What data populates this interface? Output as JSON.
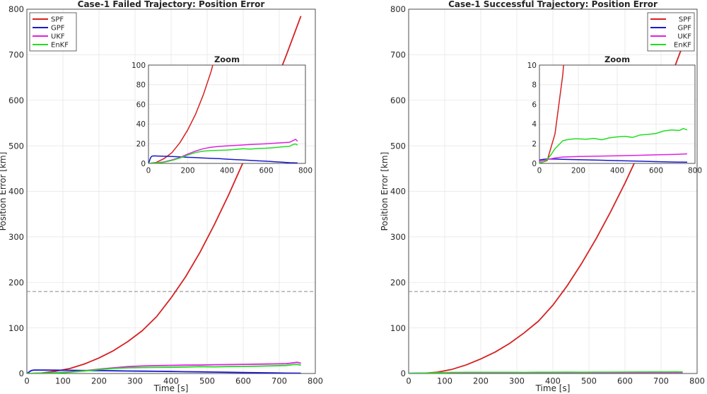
{
  "chart_data": [
    {
      "type": "line",
      "title": "Case-1 Failed Trajectory: Position Error",
      "xlabel": "Time [s]",
      "ylabel": "Position Error [km]",
      "xlim": [
        0,
        800
      ],
      "ylim": [
        0,
        800
      ],
      "xticks": [
        "0",
        "100",
        "200",
        "300",
        "400",
        "500",
        "600",
        "700",
        "800"
      ],
      "yticks": [
        "0",
        "100",
        "200",
        "300",
        "400",
        "500",
        "600",
        "700",
        "800"
      ],
      "grid": true,
      "legend_position": "top-left",
      "reference_line": {
        "y": 180,
        "style": "dashed",
        "color": "#888888"
      },
      "series": [
        {
          "name": "SPF",
          "color": "#d62020",
          "x": [
            0,
            40,
            80,
            120,
            160,
            200,
            240,
            280,
            320,
            360,
            400,
            440,
            480,
            520,
            560,
            600,
            640,
            680,
            720,
            760
          ],
          "y": [
            0,
            1,
            5,
            11,
            21,
            34,
            50,
            70,
            94,
            125,
            166,
            212,
            266,
            327,
            393,
            464,
            541,
            619,
            700,
            785
          ]
        },
        {
          "name": "GPF",
          "color": "#1a1acc",
          "x": [
            0,
            5,
            10,
            15,
            20,
            30,
            50,
            80,
            120,
            160,
            200,
            240,
            280,
            320,
            360,
            400,
            440,
            480,
            520,
            560,
            600,
            640,
            680,
            720,
            760
          ],
          "y": [
            0,
            2.5,
            5.5,
            7,
            7.5,
            7.6,
            7.5,
            7.3,
            7.0,
            6.6,
            6.2,
            5.9,
            5.5,
            5.1,
            4.8,
            4.3,
            3.9,
            3.5,
            3.1,
            2.6,
            2.2,
            1.7,
            1.2,
            0.7,
            0.4
          ]
        },
        {
          "name": "UKF",
          "color": "#e020e0",
          "x": [
            0,
            40,
            80,
            120,
            160,
            200,
            240,
            280,
            320,
            360,
            400,
            440,
            480,
            520,
            560,
            600,
            640,
            680,
            720,
            740,
            750,
            760
          ],
          "y": [
            0,
            0.5,
            1.5,
            3.5,
            6.0,
            9.5,
            12.5,
            15.0,
            16.5,
            17.3,
            17.8,
            18.3,
            18.7,
            19.2,
            19.6,
            20.0,
            20.5,
            21.0,
            21.5,
            23.5,
            24.5,
            22.5
          ]
        },
        {
          "name": "EnKF",
          "color": "#22dd22",
          "x": [
            0,
            40,
            80,
            120,
            160,
            200,
            240,
            280,
            320,
            360,
            400,
            440,
            480,
            520,
            560,
            600,
            640,
            680,
            720,
            740,
            750,
            760
          ],
          "y": [
            0,
            0.4,
            1.2,
            3.0,
            5.5,
            8.5,
            11.0,
            12.5,
            13.0,
            13.3,
            13.6,
            14.2,
            15.0,
            14.6,
            15.2,
            15.5,
            16.0,
            16.8,
            17.5,
            19.5,
            19.8,
            18.5
          ]
        }
      ],
      "inset": {
        "title": "Zoom",
        "xlim": [
          0,
          800
        ],
        "ylim": [
          0,
          100
        ],
        "xticks": [
          "0",
          "200",
          "400",
          "600",
          "800"
        ],
        "yticks": [
          "0",
          "20",
          "40",
          "60",
          "80",
          "100"
        ]
      }
    },
    {
      "type": "line",
      "title": "Case-1 Successful Trajectory: Position Error",
      "xlabel": "Time [s]",
      "ylabel": "Position Error [km]",
      "xlim": [
        0,
        800
      ],
      "ylim": [
        0,
        800
      ],
      "xticks": [
        "0",
        "100",
        "200",
        "300",
        "400",
        "500",
        "600",
        "700",
        "800"
      ],
      "yticks": [
        "0",
        "100",
        "200",
        "300",
        "400",
        "500",
        "600",
        "700",
        "800"
      ],
      "grid": true,
      "legend_position": "top-right",
      "reference_line": {
        "y": 180,
        "style": "dashed",
        "color": "#888888"
      },
      "series": [
        {
          "name": "SPF",
          "color": "#d62020",
          "x": [
            0,
            40,
            80,
            120,
            160,
            200,
            240,
            280,
            320,
            360,
            400,
            440,
            480,
            520,
            560,
            600,
            640,
            680,
            720,
            760
          ],
          "y": [
            0,
            0.3,
            3,
            9,
            19,
            32,
            47,
            66,
            89,
            115,
            150,
            193,
            242,
            296,
            355,
            418,
            486,
            558,
            636,
            720
          ]
        },
        {
          "name": "GPF",
          "color": "#1a1acc",
          "x": [
            0,
            20,
            40,
            80,
            120,
            200,
            300,
            400,
            500,
            600,
            700,
            760
          ],
          "y": [
            0.35,
            0.42,
            0.45,
            0.44,
            0.42,
            0.38,
            0.33,
            0.28,
            0.23,
            0.18,
            0.14,
            0.12
          ]
        },
        {
          "name": "UKF",
          "color": "#e020e0",
          "x": [
            0,
            20,
            40,
            80,
            120,
            200,
            300,
            400,
            500,
            600,
            700,
            760
          ],
          "y": [
            0.2,
            0.3,
            0.4,
            0.55,
            0.65,
            0.7,
            0.74,
            0.78,
            0.82,
            0.87,
            0.92,
            0.97
          ]
        },
        {
          "name": "EnKF",
          "color": "#22dd22",
          "x": [
            0,
            20,
            40,
            60,
            80,
            100,
            120,
            140,
            160,
            180,
            200,
            240,
            280,
            320,
            360,
            400,
            440,
            480,
            520,
            560,
            600,
            640,
            680,
            720,
            740,
            760
          ],
          "y": [
            0.05,
            0.15,
            0.4,
            0.9,
            1.5,
            1.9,
            2.3,
            2.4,
            2.45,
            2.5,
            2.5,
            2.45,
            2.55,
            2.4,
            2.6,
            2.7,
            2.75,
            2.65,
            2.9,
            2.95,
            3.05,
            3.3,
            3.4,
            3.35,
            3.55,
            3.4
          ]
        }
      ],
      "inset": {
        "title": "Zoom",
        "xlim": [
          0,
          800
        ],
        "ylim": [
          0,
          10
        ],
        "xticks": [
          "0",
          "200",
          "400",
          "600",
          "800"
        ],
        "yticks": [
          "0",
          "2",
          "4",
          "6",
          "8",
          "10"
        ]
      }
    }
  ]
}
